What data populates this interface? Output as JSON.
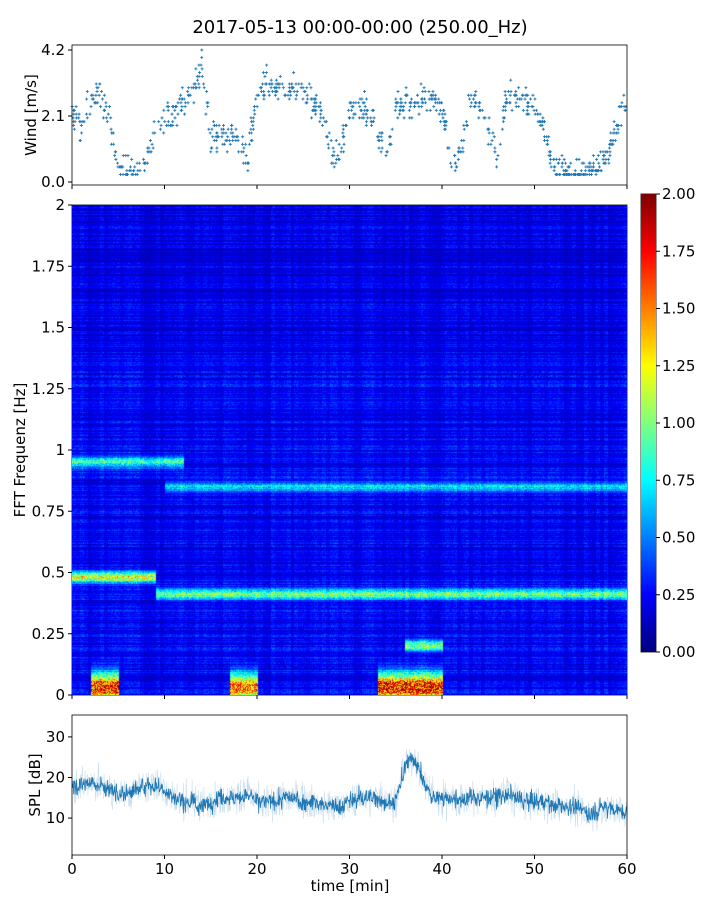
{
  "chart_data": [
    {
      "type": "scatter",
      "panel": "wind",
      "title": "2017-05-13 00:00-00:00 (250.00_Hz)",
      "xlabel": "",
      "ylabel": "Wind [m/s]",
      "xlim": [
        0,
        60
      ],
      "ylim": [
        0.0,
        4.2
      ],
      "yticks": [
        "0.0",
        "2.1",
        "4.2"
      ],
      "xticks": [
        0,
        10,
        20,
        30,
        40,
        50,
        60
      ],
      "color": "#1f77b4",
      "marker": "+",
      "x_minutes": [
        0,
        1,
        2,
        3,
        4,
        5,
        6,
        7,
        8,
        9,
        10,
        11,
        12,
        13,
        14,
        15,
        16,
        17,
        18,
        19,
        20,
        21,
        22,
        23,
        24,
        25,
        26,
        27,
        28,
        29,
        30,
        31,
        32,
        33,
        34,
        35,
        36,
        37,
        38,
        39,
        40,
        41,
        42,
        43,
        44,
        45,
        46,
        47,
        48,
        49,
        50,
        51,
        52,
        53,
        54,
        55,
        56,
        57,
        58,
        59,
        60
      ],
      "y_mean": [
        2.3,
        1.6,
        2.7,
        2.8,
        2.2,
        0.4,
        0.3,
        0.5,
        0.6,
        1.5,
        2.0,
        2.1,
        2.5,
        2.8,
        3.7,
        1.4,
        1.6,
        1.4,
        1.2,
        0.8,
        2.8,
        3.1,
        3.0,
        3.0,
        2.9,
        2.8,
        2.5,
        2.3,
        0.8,
        1.0,
        2.2,
        2.4,
        2.2,
        1.6,
        0.8,
        2.3,
        2.6,
        2.5,
        2.7,
        2.6,
        2.3,
        0.7,
        0.8,
        2.6,
        2.6,
        1.8,
        0.9,
        2.8,
        2.7,
        2.6,
        2.5,
        1.8,
        0.5,
        0.5,
        0.3,
        0.3,
        0.4,
        0.6,
        0.9,
        1.8,
        2.7
      ]
    },
    {
      "type": "heatmap",
      "panel": "spectrogram",
      "ylabel": "FFT Frequenz [Hz]",
      "xlim": [
        0,
        60
      ],
      "ylim": [
        0,
        2
      ],
      "yticks": [
        "0",
        "0.25",
        "0.5",
        "0.75",
        "1",
        "1.25",
        "1.5",
        "1.75",
        "2"
      ],
      "colormap": "jet",
      "clim": [
        0.0,
        2.0
      ],
      "colorbar_ticks": [
        "0.00",
        "0.25",
        "0.50",
        "0.75",
        "1.00",
        "1.25",
        "1.50",
        "1.75",
        "2.00"
      ],
      "background_level": 0.25,
      "features": [
        {
          "freq": 0.95,
          "t_start": 0,
          "t_end": 12,
          "level": 0.7
        },
        {
          "freq": 0.48,
          "t_start": 0,
          "t_end": 9,
          "level": 1.1
        },
        {
          "freq": 0.41,
          "t_start": 9,
          "t_end": 60,
          "level": 0.8
        },
        {
          "freq": 0.85,
          "t_start": 10,
          "t_end": 60,
          "level": 0.5
        },
        {
          "freq": 0.03,
          "t_start": 2,
          "t_end": 5,
          "level": 1.6
        },
        {
          "freq": 0.03,
          "t_start": 17,
          "t_end": 20,
          "level": 1.4
        },
        {
          "freq": 0.03,
          "t_start": 33,
          "t_end": 40,
          "level": 1.7
        },
        {
          "freq": 0.2,
          "t_start": 36,
          "t_end": 40,
          "level": 0.9
        }
      ]
    },
    {
      "type": "line",
      "panel": "spl",
      "xlabel": "time [min]",
      "ylabel": "SPL [dB]",
      "xlim": [
        0,
        60
      ],
      "ylim": [
        0.9,
        35.4
      ],
      "xticks": [
        "0",
        "10",
        "20",
        "30",
        "40",
        "50",
        "60"
      ],
      "yticks": [
        "10",
        "20",
        "30"
      ],
      "color": "#1f77b4",
      "x_minutes": [
        0,
        1,
        2,
        3,
        4,
        5,
        6,
        7,
        8,
        9,
        10,
        11,
        12,
        13,
        14,
        15,
        16,
        17,
        18,
        19,
        20,
        21,
        22,
        23,
        24,
        25,
        26,
        27,
        28,
        29,
        30,
        31,
        32,
        33,
        34,
        35,
        36,
        37,
        38,
        39,
        40,
        41,
        42,
        43,
        44,
        45,
        46,
        47,
        48,
        49,
        50,
        51,
        52,
        53,
        54,
        55,
        56,
        57,
        58,
        59,
        60
      ],
      "y_mean": [
        18,
        18,
        19,
        18,
        17,
        16,
        16,
        17,
        18,
        18,
        17,
        15,
        14,
        14,
        13,
        14,
        15,
        15,
        15,
        16,
        14,
        14,
        14,
        15,
        15,
        14,
        14,
        13,
        13,
        13,
        14,
        15,
        15,
        15,
        14,
        14,
        23,
        25,
        19,
        15,
        15,
        15,
        14,
        15,
        15,
        15,
        15,
        16,
        15,
        14,
        14,
        14,
        13,
        13,
        13,
        12,
        11,
        12,
        13,
        12,
        11
      ]
    }
  ]
}
